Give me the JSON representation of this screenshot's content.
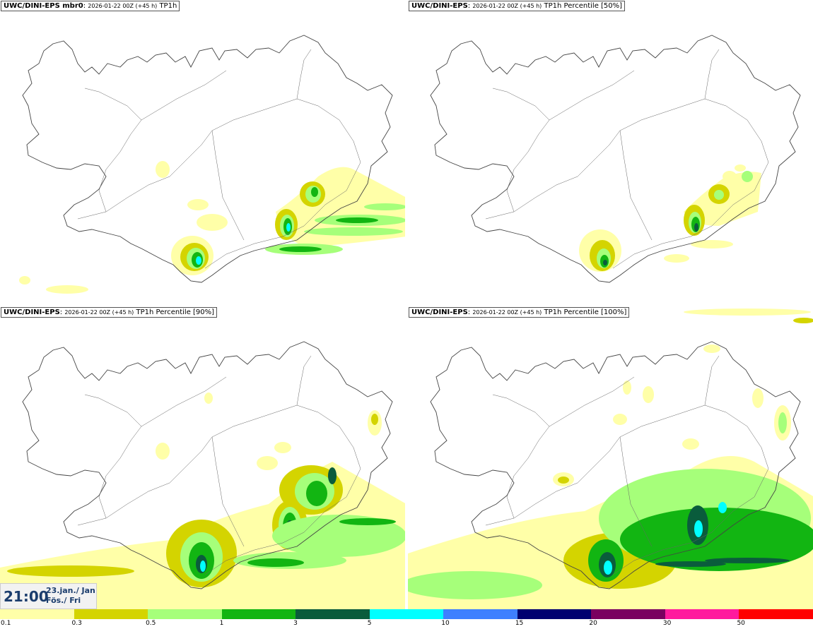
{
  "panels": [
    {
      "model": "UWC/DINI-EPS mbr0",
      "run": "2026-01-22 00Z (+45 h)",
      "field": "TP1h"
    },
    {
      "model": "UWC/DINI-EPS",
      "run": "2026-01-22 00Z (+45 h)",
      "field": "TP1h Percentile [50%]"
    },
    {
      "model": "UWC/DINI-EPS",
      "run": "2026-01-22 00Z (+45 h)",
      "field": "TP1h Percentile [90%]"
    },
    {
      "model": "UWC/DINI-EPS",
      "run": "2026-01-22 00Z (+45 h)",
      "field": "TP1h Percentile [100%]"
    }
  ],
  "valid_time": {
    "time": "21:00",
    "date_line1": "23.jan./ Jan",
    "date_line2": "Fös./ Fri"
  },
  "colorbar": {
    "labels": [
      "0.1",
      "0.3",
      "0.5",
      "1",
      "3",
      "5",
      "10",
      "15",
      "20",
      "30",
      "50"
    ],
    "colors": [
      "#ffffa8",
      "#d4d400",
      "#a6ff7a",
      "#12b512",
      "#0a5c3c",
      "#00ffff",
      "#3f80ff",
      "#000070",
      "#7a0060",
      "#ff1a9e",
      "#ff0000"
    ]
  }
}
